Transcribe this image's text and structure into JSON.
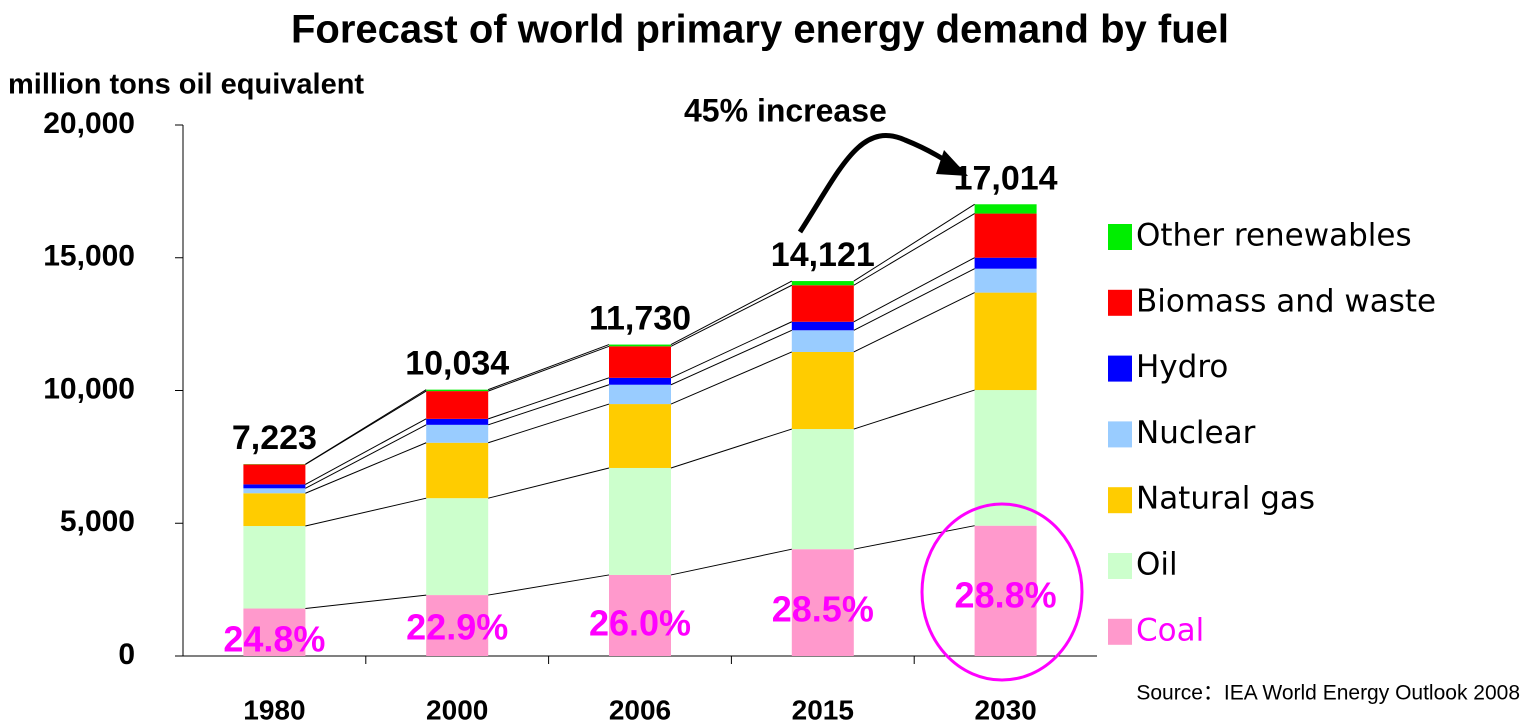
{
  "chart_data": {
    "type": "stacked_bar",
    "title": "Forecast of world primary energy demand by fuel",
    "y_axis_label": "million tons oil equivalent",
    "categories": [
      "1980",
      "2000",
      "2006",
      "2015",
      "2030"
    ],
    "series": [
      {
        "name": "Coal",
        "color": "#ff99cc",
        "values": [
          1788,
          2295,
          3053,
          4023,
          4908
        ]
      },
      {
        "name": "Oil",
        "color": "#ccffcc",
        "values": [
          3107,
          3649,
          4029,
          4525,
          5109
        ]
      },
      {
        "name": "Natural gas",
        "color": "#ffcc00",
        "values": [
          1235,
          2088,
          2407,
          2903,
          3670
        ]
      },
      {
        "name": "Nuclear",
        "color": "#99ccff",
        "values": [
          186,
          675,
          728,
          817,
          901
        ]
      },
      {
        "name": "Hydro",
        "color": "#0000ff",
        "values": [
          148,
          225,
          261,
          321,
          414
        ]
      },
      {
        "name": "Biomass and waste",
        "color": "#ff0000",
        "values": [
          749,
          1045,
          1186,
          1375,
          1662
        ]
      },
      {
        "name": "Other renewables",
        "color": "#00ee00",
        "values": [
          12,
          55,
          66,
          158,
          350
        ]
      }
    ],
    "totals": [
      7223,
      10034,
      11730,
      14121,
      17014
    ],
    "total_labels": [
      "7,223",
      "10,034",
      "11,730",
      "14,121",
      "17,014"
    ],
    "coal_share_labels": [
      "24.8%",
      "22.9%",
      "26.0%",
      "28.5%",
      "28.8%"
    ],
    "annotation": "45% increase",
    "source": "Source：IEA World Energy Outlook 2008",
    "ylim": [
      0,
      20000
    ],
    "yticks": [
      0,
      {
        "value": 5000,
        "label": "5,000"
      },
      {
        "value": 10000,
        "label": "10,000"
      },
      {
        "value": 15000,
        "label": "15,000"
      },
      {
        "value": 20000,
        "label": "20,000"
      }
    ],
    "legend": "right"
  }
}
